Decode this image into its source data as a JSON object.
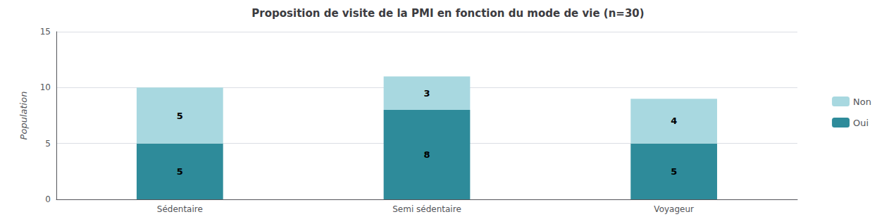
{
  "chart_data": {
    "type": "bar",
    "title": "Proposition de visite de la PMI en fonction du mode de vie (n=30)",
    "ylabel": "Population",
    "categories": [
      "Sédentaire",
      "Semi sédentaire",
      "Voyageur"
    ],
    "series": [
      {
        "name": "Oui",
        "color": "#2E8B9A",
        "values": [
          5,
          8,
          5
        ]
      },
      {
        "name": "Non",
        "color": "#A8D8E0",
        "values": [
          5,
          3,
          4
        ]
      }
    ],
    "stacked": true,
    "data_labels": true,
    "ylim": [
      0,
      15
    ],
    "yticks": [
      0,
      5,
      10,
      15
    ],
    "grid": true,
    "legend": "right"
  }
}
